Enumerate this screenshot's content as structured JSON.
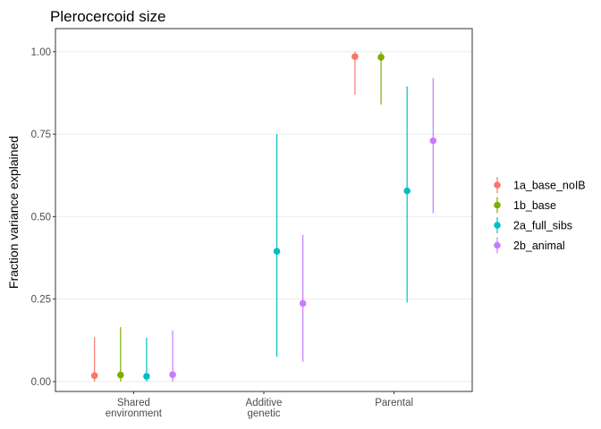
{
  "chart_data": {
    "type": "scatter",
    "title": "Plerocercoid size",
    "xlabel": "",
    "ylabel": "Fraction variance explained",
    "ylim": [
      -0.03,
      1.07
    ],
    "yticks": [
      "0.00",
      "0.25",
      "0.50",
      "0.75",
      "1.00"
    ],
    "ytick_values": [
      0,
      0.25,
      0.5,
      0.75,
      1.0
    ],
    "categories": [
      {
        "lines": [
          "Shared",
          "environment"
        ]
      },
      {
        "lines": [
          "Additive",
          "genetic"
        ]
      },
      {
        "lines": [
          "Parental"
        ]
      }
    ],
    "grid": true,
    "legend_position": "right",
    "series": [
      {
        "name": "1a_base_noIB",
        "color": "#F8766D",
        "points": [
          {
            "category": 0,
            "y": 0.018,
            "lower": 0.0,
            "upper": 0.135
          },
          {
            "category": 2,
            "y": 0.985,
            "lower": 0.87,
            "upper": 1.0
          }
        ]
      },
      {
        "name": "1b_base",
        "color": "#7CAE00",
        "points": [
          {
            "category": 0,
            "y": 0.02,
            "lower": 0.0,
            "upper": 0.165
          },
          {
            "category": 2,
            "y": 0.983,
            "lower": 0.84,
            "upper": 1.0
          }
        ]
      },
      {
        "name": "2a_full_sibs",
        "color": "#00BFC4",
        "points": [
          {
            "category": 0,
            "y": 0.016,
            "lower": 0.0,
            "upper": 0.133
          },
          {
            "category": 1,
            "y": 0.395,
            "lower": 0.075,
            "upper": 0.75
          },
          {
            "category": 2,
            "y": 0.578,
            "lower": 0.24,
            "upper": 0.895
          }
        ]
      },
      {
        "name": "2b_animal",
        "color": "#C77CFF",
        "points": [
          {
            "category": 0,
            "y": 0.021,
            "lower": 0.0,
            "upper": 0.155
          },
          {
            "category": 1,
            "y": 0.237,
            "lower": 0.06,
            "upper": 0.445
          },
          {
            "category": 2,
            "y": 0.73,
            "lower": 0.51,
            "upper": 0.92
          }
        ]
      }
    ]
  }
}
